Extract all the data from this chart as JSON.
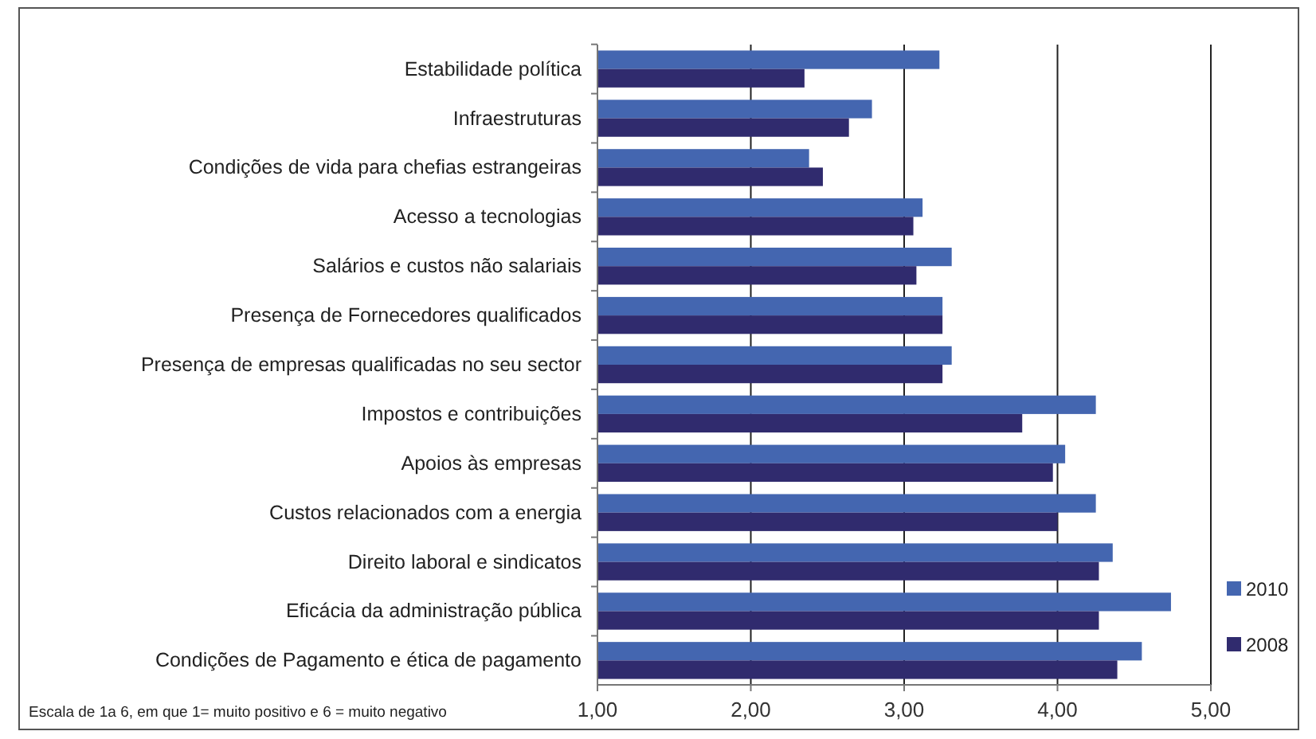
{
  "chart_data": {
    "type": "bar",
    "orientation": "horizontal",
    "categories": [
      "Estabilidade política",
      "Infraestruturas",
      "Condições de vida para chefias estrangeiras",
      "Acesso a tecnologias",
      "Salários e custos não salariais",
      "Presença de Fornecedores qualificados",
      "Presença de empresas qualificadas no seu sector",
      "Impostos e contribuições",
      "Apoios às empresas",
      "Custos relacionados com a energia",
      "Direito laboral e sindicatos",
      "Eficácia da administração pública",
      "Condições de Pagamento e ética de pagamento"
    ],
    "series": [
      {
        "name": "2010",
        "color": "#4466b0",
        "values": [
          3.23,
          2.79,
          2.38,
          3.12,
          3.31,
          3.25,
          3.31,
          4.25,
          4.05,
          4.25,
          4.36,
          4.74,
          4.55
        ]
      },
      {
        "name": "2008",
        "color": "#302b6e",
        "values": [
          2.35,
          2.64,
          2.47,
          3.06,
          3.08,
          3.25,
          3.25,
          3.77,
          3.97,
          4.0,
          4.27,
          4.27,
          4.39
        ]
      }
    ],
    "xlim": [
      1,
      5
    ],
    "xticks": [
      {
        "value": 1,
        "label": "1,00"
      },
      {
        "value": 2,
        "label": "2,00"
      },
      {
        "value": 3,
        "label": "3,00"
      },
      {
        "value": 4,
        "label": "4,00"
      },
      {
        "value": 5,
        "label": "5,00"
      }
    ],
    "grid": "x",
    "legend": "bottom right",
    "annotations": [
      "Escala de 1a 6, em que 1= muito positivo e 6 = muito negativo"
    ]
  }
}
